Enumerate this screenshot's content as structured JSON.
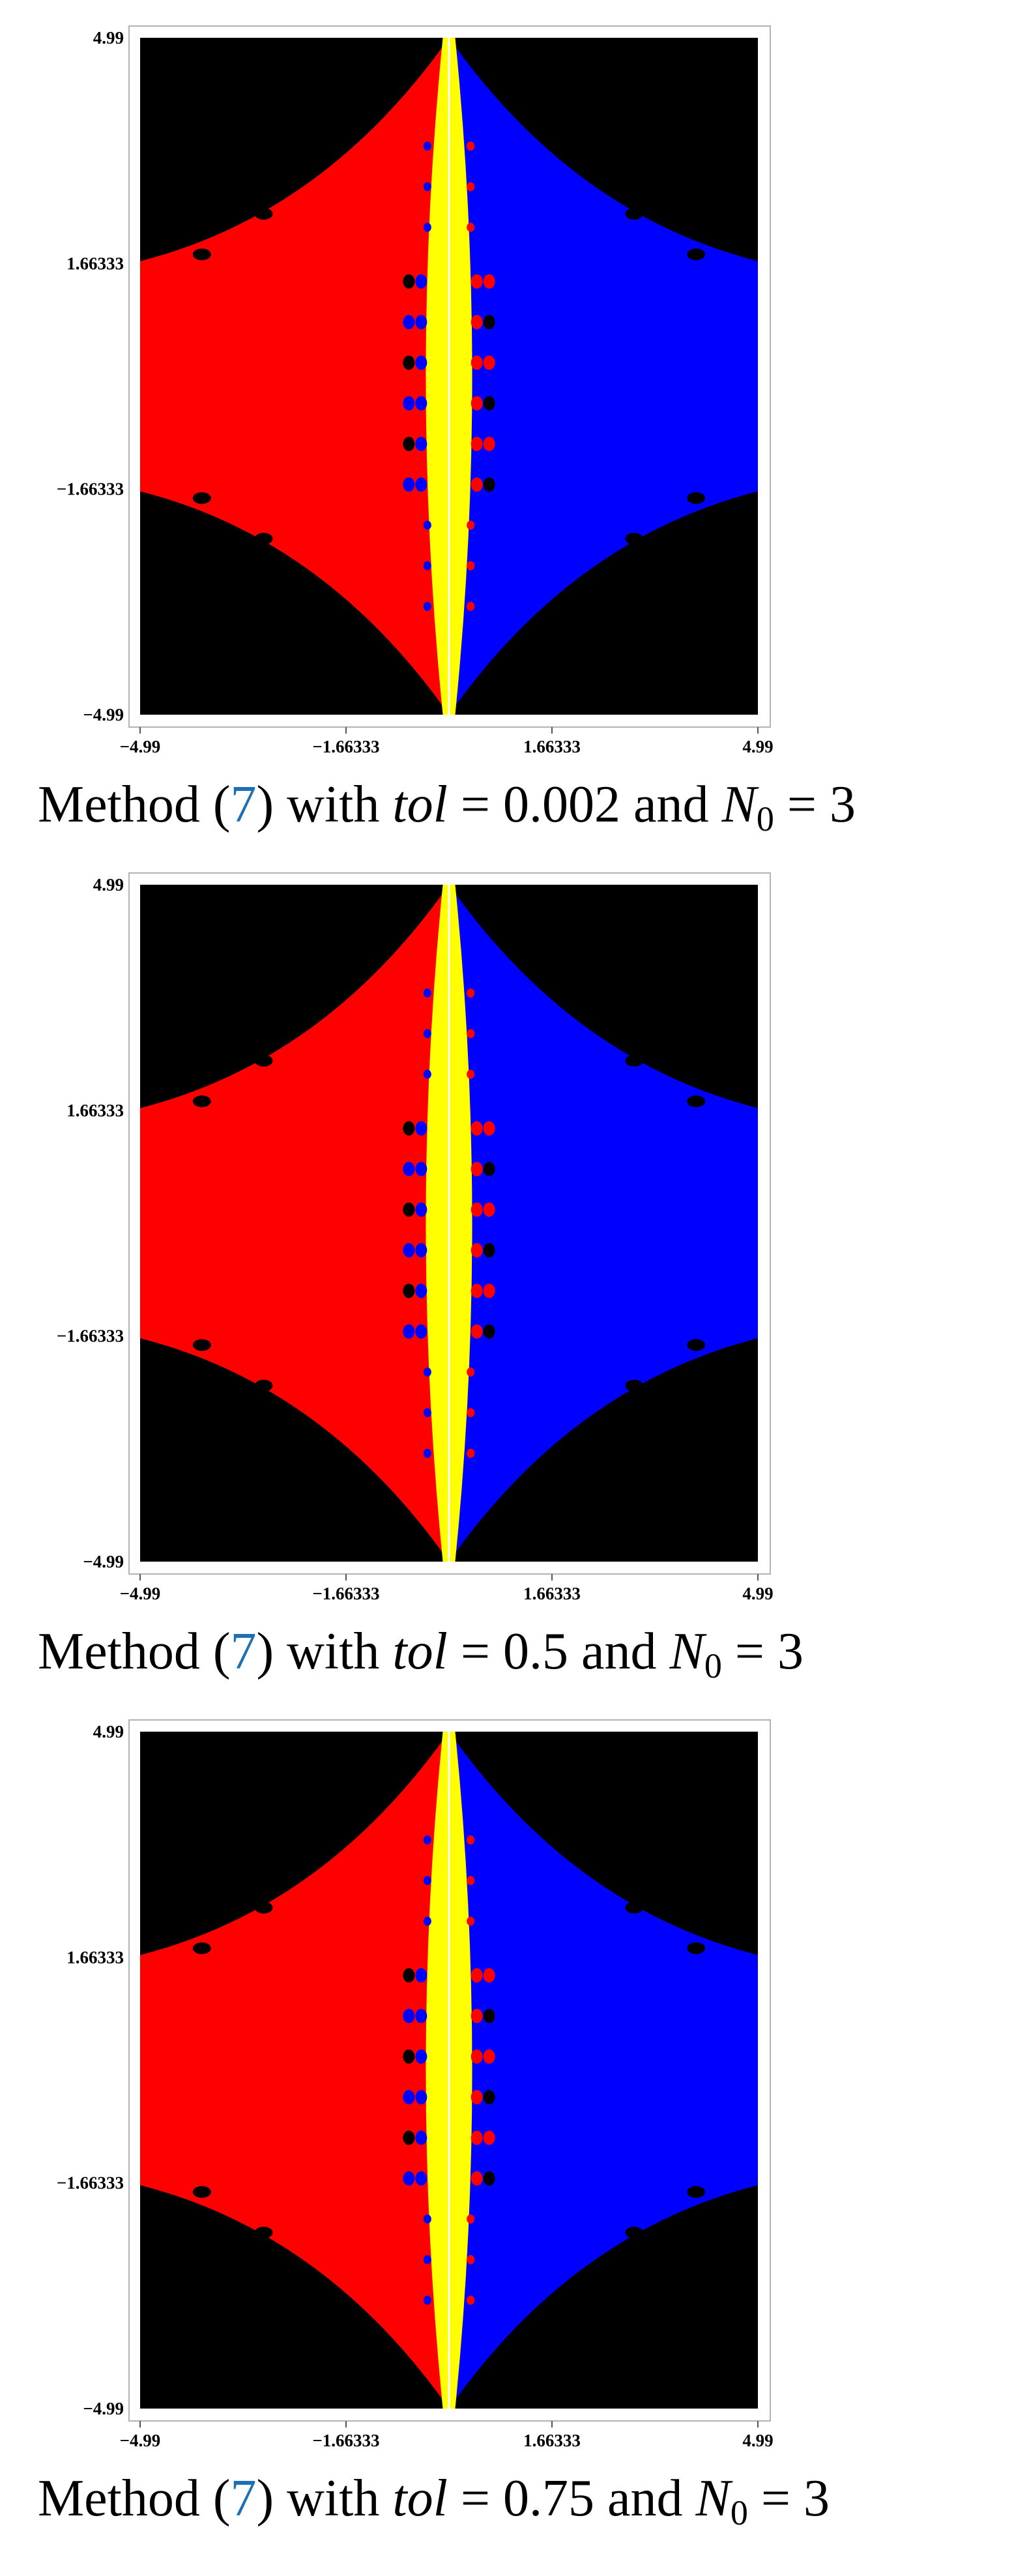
{
  "panels": [
    {
      "plot": {
        "x_ticks": [
          "−4.99",
          "−1.66333",
          "1.66333",
          "4.99"
        ],
        "y_ticks": [
          "4.99",
          "1.66333",
          "−1.66333",
          "−4.99"
        ]
      },
      "caption": {
        "method": "Method",
        "paren_open": "(",
        "ref": "7",
        "paren_close": ")",
        "with": "with",
        "tol_label": "tol",
        "tol_eq": "= 0.002",
        "and": "and",
        "n_label": "N",
        "n_sub": "0",
        "n_eq": "= 3"
      }
    },
    {
      "plot": {
        "x_ticks": [
          "−4.99",
          "−1.66333",
          "1.66333",
          "4.99"
        ],
        "y_ticks": [
          "4.99",
          "1.66333",
          "−1.66333",
          "−4.99"
        ]
      },
      "caption": {
        "method": "Method",
        "paren_open": "(",
        "ref": "7",
        "paren_close": ")",
        "with": "with",
        "tol_label": "tol",
        "tol_eq": "= 0.5",
        "and": "and",
        "n_label": "N",
        "n_sub": "0",
        "n_eq": "= 3"
      }
    },
    {
      "plot": {
        "x_ticks": [
          "−4.99",
          "−1.66333",
          "1.66333",
          "4.99"
        ],
        "y_ticks": [
          "4.99",
          "1.66333",
          "−1.66333",
          "−4.99"
        ]
      },
      "caption": {
        "method": "Method",
        "paren_open": "(",
        "ref": "7",
        "paren_close": ")",
        "with": "with",
        "tol_label": "tol",
        "tol_eq": "= 0.75",
        "and": "and",
        "n_label": "N",
        "n_sub": "0",
        "n_eq": "= 3"
      }
    }
  ],
  "colors": {
    "basin_left": "#ff0000",
    "basin_right": "#0000ff",
    "basin_center": "#ffff00",
    "divergent": "#000000",
    "reference_link": "#1f6fb5"
  }
}
